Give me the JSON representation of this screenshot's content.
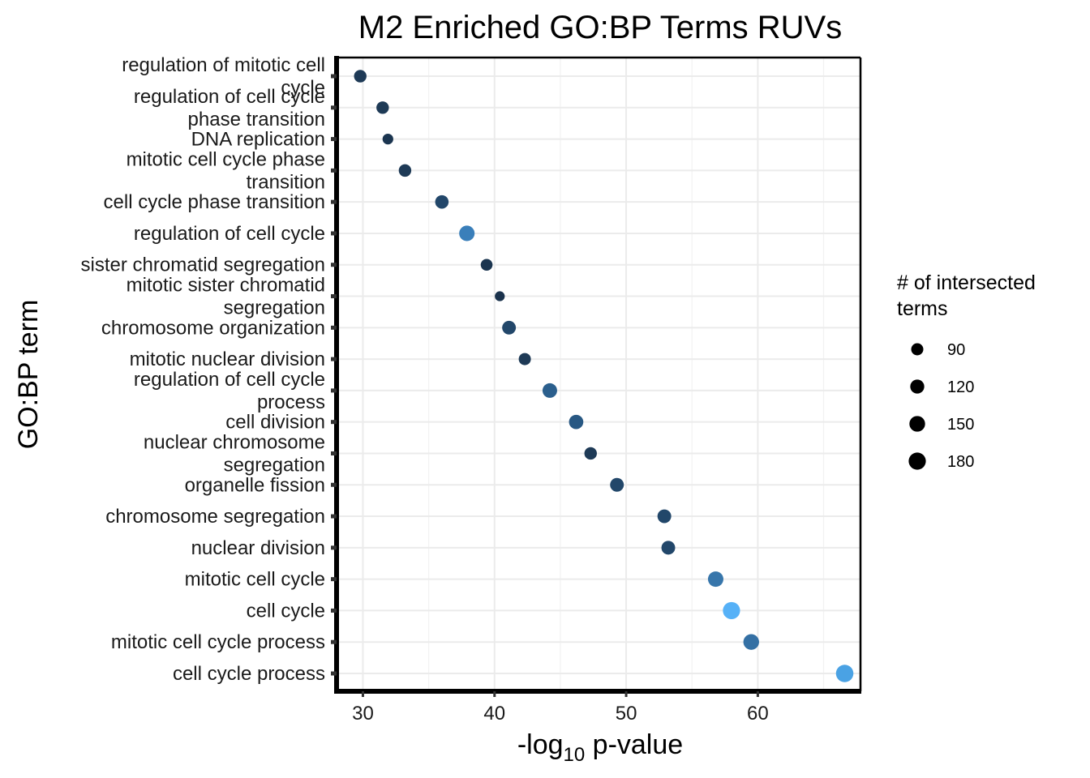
{
  "chart_data": {
    "type": "scatter",
    "title": "M2 Enriched GO:BP Terms RUVs",
    "xlabel_main": "-log",
    "xlabel_sub": "10",
    "xlabel_tail": " p-value",
    "ylabel": "GO:BP term",
    "xlim": [
      28,
      67.8
    ],
    "x_ticks": [
      30,
      40,
      50,
      60
    ],
    "categories": [
      "regulation of mitotic cell cycle",
      "regulation of cell cycle phase transition",
      "DNA replication",
      "mitotic cell cycle phase transition",
      "cell cycle phase transition",
      "regulation of cell cycle",
      "sister chromatid segregation",
      "mitotic sister chromatid segregation",
      "chromosome organization",
      "mitotic nuclear division",
      "regulation of cell cycle process",
      "cell division",
      "nuclear chromosome segregation",
      "organelle fission",
      "chromosome segregation",
      "nuclear division",
      "mitotic cell cycle",
      "cell cycle",
      "mitotic cell cycle process",
      "cell cycle process"
    ],
    "category_label_lines": [
      [
        "regulation of mitotic cell",
        "cycle"
      ],
      [
        "regulation of cell cycle",
        "phase transition"
      ],
      [
        "DNA replication"
      ],
      [
        "mitotic cell cycle phase",
        "transition"
      ],
      [
        "cell cycle phase transition"
      ],
      [
        "regulation of cell cycle"
      ],
      [
        "sister chromatid segregation"
      ],
      [
        "mitotic sister chromatid",
        "segregation"
      ],
      [
        "chromosome organization"
      ],
      [
        "mitotic nuclear division"
      ],
      [
        "regulation of cell cycle",
        "process"
      ],
      [
        "cell division"
      ],
      [
        "nuclear chromosome",
        "segregation"
      ],
      [
        "organelle fission"
      ],
      [
        "chromosome segregation"
      ],
      [
        "nuclear division"
      ],
      [
        "mitotic cell cycle"
      ],
      [
        "cell cycle"
      ],
      [
        "mitotic cell cycle process"
      ],
      [
        "cell cycle process"
      ]
    ],
    "x": [
      29.8,
      31.5,
      31.9,
      33.2,
      36.0,
      37.9,
      39.4,
      40.4,
      41.1,
      42.3,
      44.2,
      46.2,
      47.3,
      49.3,
      52.9,
      53.2,
      56.8,
      58.0,
      59.5,
      66.6
    ],
    "sizes": [
      95,
      95,
      70,
      95,
      110,
      145,
      85,
      60,
      115,
      90,
      130,
      125,
      95,
      115,
      115,
      115,
      145,
      180,
      150,
      185
    ],
    "colors": [
      "#1e3a56",
      "#1e3a56",
      "#1b3550",
      "#1e3a56",
      "#22476a",
      "#3a7fba",
      "#1b3550",
      "#1a324c",
      "#22476a",
      "#1e3a56",
      "#2b5f8d",
      "#285883",
      "#1e3a56",
      "#22476a",
      "#22476a",
      "#22476a",
      "#3776ab",
      "#56b1f7",
      "#3470a4",
      "#4aa2e4"
    ],
    "legend": {
      "title_lines": [
        "# of intersected",
        " terms"
      ],
      "labels": [
        "90",
        "120",
        "150",
        "180"
      ],
      "sizes": [
        90,
        120,
        150,
        180
      ],
      "position": "right"
    }
  }
}
